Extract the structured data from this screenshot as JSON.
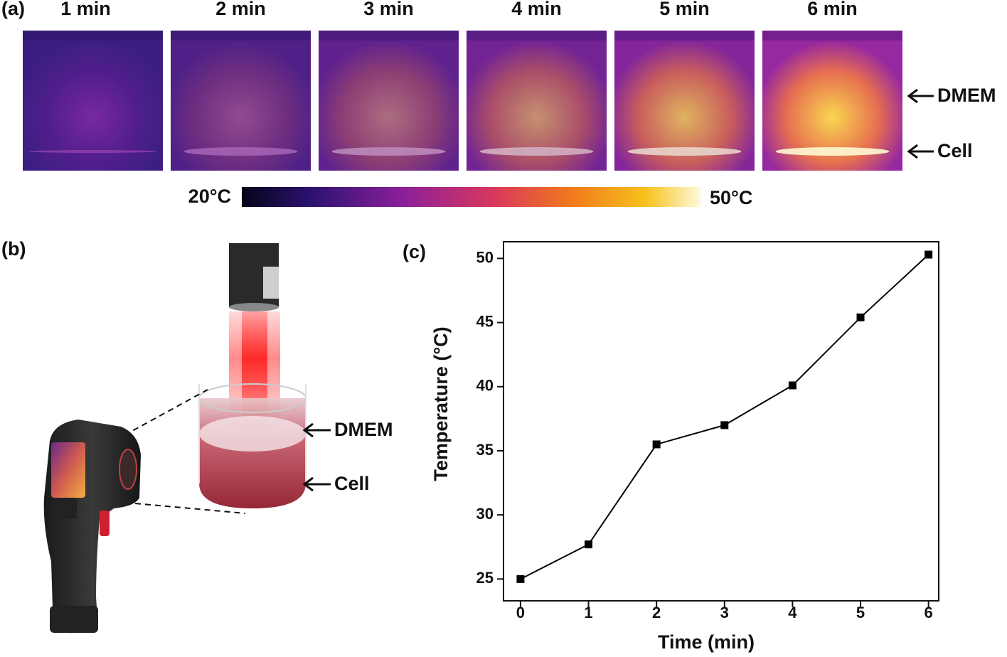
{
  "thermal_panel": {
    "label": "(a)",
    "times": [
      "1 min",
      "2 min",
      "3 min",
      "4 min",
      "5 min",
      "6 min"
    ],
    "layer_labels": [
      "DMEM",
      "Cell"
    ],
    "colorbar_min": "20°C",
    "colorbar_max": "50°C"
  },
  "setup_panel": {
    "label": "(b)",
    "layer_labels": [
      "DMEM",
      "Cell"
    ]
  },
  "chart_data": {
    "type": "line",
    "panel_label": "(c)",
    "x_label": "Time (min)",
    "y_label": "Temperature (°C)",
    "x": [
      0,
      1,
      2,
      3,
      4,
      5,
      6
    ],
    "values": [
      25.0,
      27.7,
      35.5,
      37.0,
      40.1,
      45.4,
      50.3
    ],
    "color": "#000000",
    "xlim": [
      -0.25,
      6.15
    ],
    "ylim": [
      23.3,
      51.3
    ],
    "xticks": [
      0,
      1,
      2,
      3,
      4,
      5,
      6
    ],
    "yticks": [
      25,
      30,
      35,
      40,
      45,
      50
    ]
  }
}
